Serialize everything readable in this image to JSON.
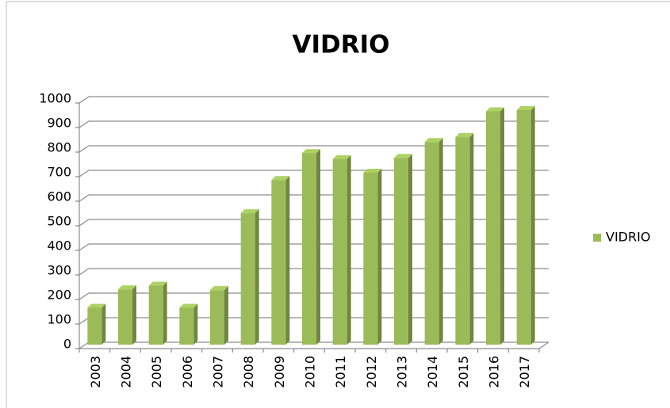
{
  "chart_data": {
    "type": "bar",
    "title": "VIDRIO",
    "categories": [
      "2003",
      "2004",
      "2005",
      "2006",
      "2007",
      "2008",
      "2009",
      "2010",
      "2011",
      "2012",
      "2013",
      "2014",
      "2015",
      "2016",
      "2017"
    ],
    "series": [
      {
        "name": "VIDRIO",
        "color": "#9bbb59",
        "values": [
          150,
          225,
          240,
          150,
          222,
          535,
          670,
          780,
          755,
          700,
          760,
          825,
          845,
          950,
          955
        ]
      }
    ],
    "ylim": [
      0,
      1000
    ],
    "yticks": [
      0,
      100,
      200,
      300,
      400,
      500,
      600,
      700,
      800,
      900,
      1000
    ],
    "grid": true,
    "legend": "right"
  }
}
